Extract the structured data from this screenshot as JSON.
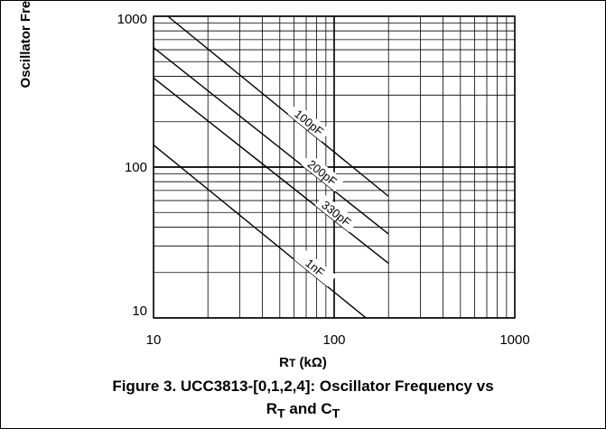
{
  "chart_data": {
    "type": "line",
    "x_scale": "log",
    "y_scale": "log",
    "xlim": [
      10,
      1000
    ],
    "ylim": [
      10,
      1000
    ],
    "x_ticks": [
      "10",
      "100",
      "1000"
    ],
    "y_ticks": [
      "10",
      "100",
      "1000"
    ],
    "xlabel_main": "R",
    "xlabel_sub": "T",
    "xlabel_unit": "(kΩ)",
    "ylabel": "Oscillator Freq. (kHz)",
    "grid": true,
    "series": [
      {
        "name": "100pF",
        "x": [
          12,
          200
        ],
        "y": [
          1000,
          64
        ]
      },
      {
        "name": "200pF",
        "x": [
          10,
          200
        ],
        "y": [
          620,
          36
        ]
      },
      {
        "name": "330pF",
        "x": [
          10,
          200
        ],
        "y": [
          390,
          23
        ]
      },
      {
        "name": "1nF",
        "x": [
          10,
          150
        ],
        "y": [
          140,
          10
        ]
      }
    ]
  },
  "caption": {
    "line1": "Figure 3. UCC3813-[0,1,2,4]: Oscillator Frequency vs",
    "line2_r": "R",
    "line2_rsub": "T",
    "line2_and": " and C",
    "line2_csub": "T"
  },
  "colors": {
    "line": "#000000",
    "grid": "#000000",
    "background": "#ffffff"
  }
}
